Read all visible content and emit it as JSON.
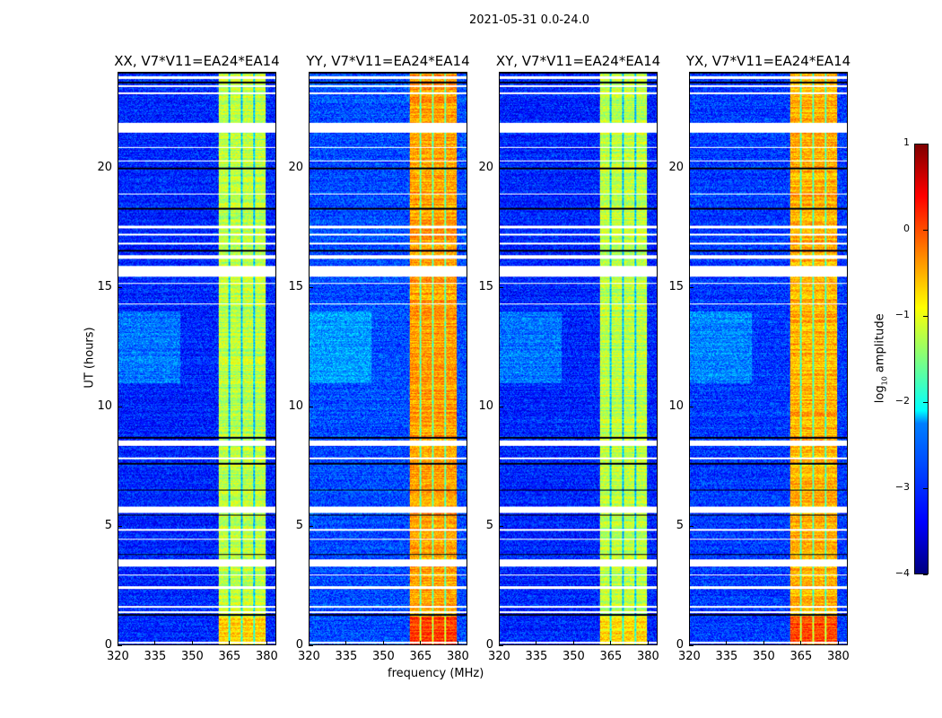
{
  "chart_data": {
    "type": "heatmap",
    "title": "2021-05-31 0.0-24.0",
    "xlabel": "frequency (MHz)",
    "ylabel": "UT (hours)",
    "xlim": [
      320,
      384
    ],
    "ylim": [
      0,
      24
    ],
    "xticks": [
      320,
      335,
      350,
      365,
      380
    ],
    "yticks": [
      0,
      5,
      10,
      15,
      20
    ],
    "colorbar": {
      "label": "log10 amplitude",
      "label_main": "log",
      "label_sub": "10",
      "label_rest": " amplitude",
      "range": [
        -4,
        1
      ],
      "ticks": [
        1,
        0,
        -1,
        -2,
        -3,
        -4
      ],
      "tick_labels": [
        "1",
        "0",
        "−1",
        "−2",
        "−3",
        "−4"
      ],
      "colormap": "jet"
    },
    "panels": [
      {
        "title": "XX, V7*V11=EA24*EA14",
        "background_level": -3.2,
        "band_level": -1.2
      },
      {
        "title": "YY, V7*V11=EA24*EA14",
        "background_level": -3.0,
        "band_level": -0.4
      },
      {
        "title": "XY, V7*V11=EA24*EA14",
        "background_level": -3.2,
        "band_level": -1.2
      },
      {
        "title": "YX, V7*V11=EA24*EA14",
        "background_level": -3.1,
        "band_level": -0.5
      }
    ],
    "band_mhz": [
      360.5,
      380
    ],
    "subband_gaps_mhz": [
      365,
      370,
      375
    ],
    "flagged_hours": [
      [
        23.75,
        23.85
      ],
      [
        23.4,
        23.5
      ],
      [
        23.1,
        23.2
      ],
      [
        21.5,
        21.9
      ],
      [
        20.85,
        20.9
      ],
      [
        20.3,
        20.35
      ],
      [
        18.9,
        18.95
      ],
      [
        17.5,
        17.6
      ],
      [
        17.2,
        17.25
      ],
      [
        16.8,
        16.9
      ],
      [
        16.2,
        16.35
      ],
      [
        15.45,
        15.9
      ],
      [
        15.15,
        15.2
      ],
      [
        14.3,
        14.33
      ],
      [
        13.9,
        13.93
      ],
      [
        8.35,
        8.6
      ],
      [
        7.8,
        7.85
      ],
      [
        5.55,
        5.8
      ],
      [
        4.8,
        4.85
      ],
      [
        4.4,
        4.45
      ],
      [
        3.3,
        3.6
      ],
      [
        2.9,
        2.95
      ],
      [
        2.35,
        2.45
      ],
      [
        1.55,
        1.65
      ],
      [
        1.35,
        1.4
      ],
      [
        0.05,
        0.12
      ]
    ],
    "low_hours": [
      20.0,
      18.3,
      16.55,
      15.85,
      8.7,
      7.6,
      6.5,
      5.45,
      3.8,
      1.25,
      24.0,
      23.6
    ]
  }
}
